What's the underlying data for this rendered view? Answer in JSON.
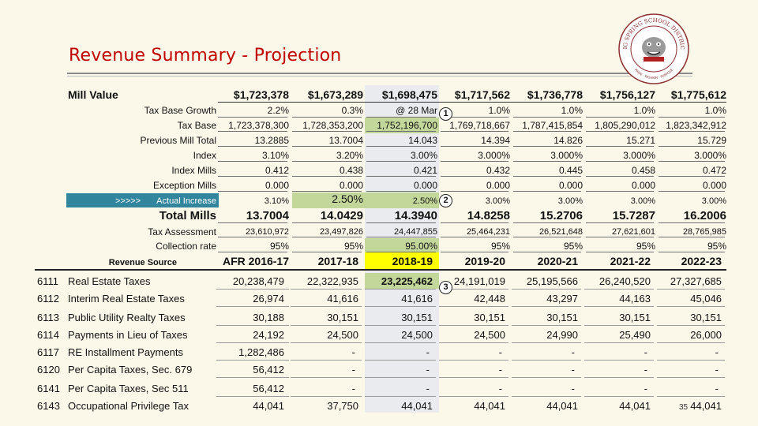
{
  "slide": {
    "title": "Revenue Summary - Projection",
    "page_number": "35"
  },
  "seal": {
    "text_top": "BIG SPRING SCHOOL DISTRICT",
    "text_bottom": "PRIDE · PASSION · PURPOSE",
    "colors": {
      "ring": "#8c2f2f",
      "mascot": "#7a7a7a"
    }
  },
  "colors": {
    "accent_red": "#c00000",
    "teal": "#31859c",
    "green": "#c4d79b",
    "yellow": "#ffff00",
    "gray_col": "#e9ebee"
  },
  "table": {
    "mill_label": "Mill Value",
    "mill_values": [
      "$1,723,378",
      "$1,673,289",
      "$1,698,475",
      "$1,717,562",
      "$1,736,778",
      "$1,756,127",
      "$1,775,612"
    ],
    "rows": [
      {
        "label": "Tax Base Growth",
        "values": [
          "2.2%",
          "0.3%",
          "@ 28 Mar",
          "1.0%",
          "1.0%",
          "1.0%",
          "1.0%"
        ]
      },
      {
        "label": "Tax Base",
        "values": [
          "1,723,378,300",
          "1,728,353,200",
          "1,752,196,700",
          "1,769,718,667",
          "1,787,415,854",
          "1,805,290,012",
          "1,823,342,912"
        ]
      },
      {
        "label": "Previous Mill Total",
        "values": [
          "13.2885",
          "13.7004",
          "14.043",
          "14.394",
          "14.826",
          "15.271",
          "15.729"
        ]
      },
      {
        "label": "Index",
        "values": [
          "3.10%",
          "3.20%",
          "3.00%",
          "3.000%",
          "3.000%",
          "3.000%",
          "3.000%"
        ]
      },
      {
        "label": "Index Mills",
        "values": [
          "0.412",
          "0.438",
          "0.421",
          "0.432",
          "0.445",
          "0.458",
          "0.472"
        ]
      },
      {
        "label": "Exception Mills",
        "values": [
          "0.000",
          "0.000",
          "0.000",
          "0.000",
          "0.000",
          "0.000",
          "0.000"
        ]
      },
      {
        "label": "Actual Increase",
        "prefix": ">>>>>",
        "values": [
          "3.10%",
          "2.50%",
          "2.50%",
          "3.00%",
          "3.00%",
          "3.00%",
          "3.00%"
        ]
      },
      {
        "label": "Total Mills",
        "values": [
          "13.7004",
          "14.0429",
          "14.3940",
          "14.8258",
          "15.2706",
          "15.7287",
          "16.2006"
        ]
      },
      {
        "label": "Tax Assessment",
        "values": [
          "23,610,972",
          "23,497,826",
          "24,447,855",
          "25,464,231",
          "26,521,648",
          "27,621,601",
          "28,765,985"
        ]
      },
      {
        "label": "Collection rate",
        "values": [
          "95%",
          "95%",
          "95.00%",
          "95%",
          "95%",
          "95%",
          "95%"
        ]
      }
    ],
    "revenue_source_label": "Revenue Source",
    "years": [
      "AFR 2016-17",
      "2017-18",
      "2018-19",
      "2019-20",
      "2020-21",
      "2021-22",
      "2022-23"
    ],
    "revenue": [
      {
        "code": "6111",
        "name": "Real Estate Taxes",
        "values": [
          "20,238,479",
          "22,322,935",
          "23,225,462",
          "24,191,019",
          "25,195,566",
          "26,240,520",
          "27,327,685"
        ]
      },
      {
        "code": "6112",
        "name": "Interim Real Estate Taxes",
        "values": [
          "26,974",
          "41,616",
          "41,616",
          "42,448",
          "43,297",
          "44,163",
          "45,046"
        ]
      },
      {
        "code": "6113",
        "name": "Public Utility Realty Taxes",
        "values": [
          "30,188",
          "30,151",
          "30,151",
          "30,151",
          "30,151",
          "30,151",
          "30,151"
        ]
      },
      {
        "code": "6114",
        "name": "Payments in Lieu of Taxes",
        "values": [
          "24,192",
          "24,500",
          "24,500",
          "24,500",
          "24,990",
          "25,490",
          "26,000"
        ]
      },
      {
        "code": "6117",
        "name": "RE Installment Payments",
        "values": [
          "1,282,486",
          "-",
          "-",
          "-",
          "-",
          "-",
          "-"
        ]
      },
      {
        "code": "6120",
        "name": "Per Capita Taxes, Sec. 679",
        "values": [
          "56,412",
          "-",
          "-",
          "-",
          "-",
          "-",
          "-"
        ]
      },
      {
        "code": "6141",
        "name": "Per Capita Taxes, Sec 511",
        "values": [
          "56,412",
          "-",
          "-",
          "-",
          "-",
          "-",
          "-"
        ]
      },
      {
        "code": "6143",
        "name": "Occupational Privilege Tax",
        "values": [
          "44,041",
          "37,750",
          "44,041",
          "44,041",
          "44,041",
          "44,041",
          "44,041"
        ]
      }
    ],
    "callouts": [
      "1",
      "2",
      "3"
    ]
  }
}
